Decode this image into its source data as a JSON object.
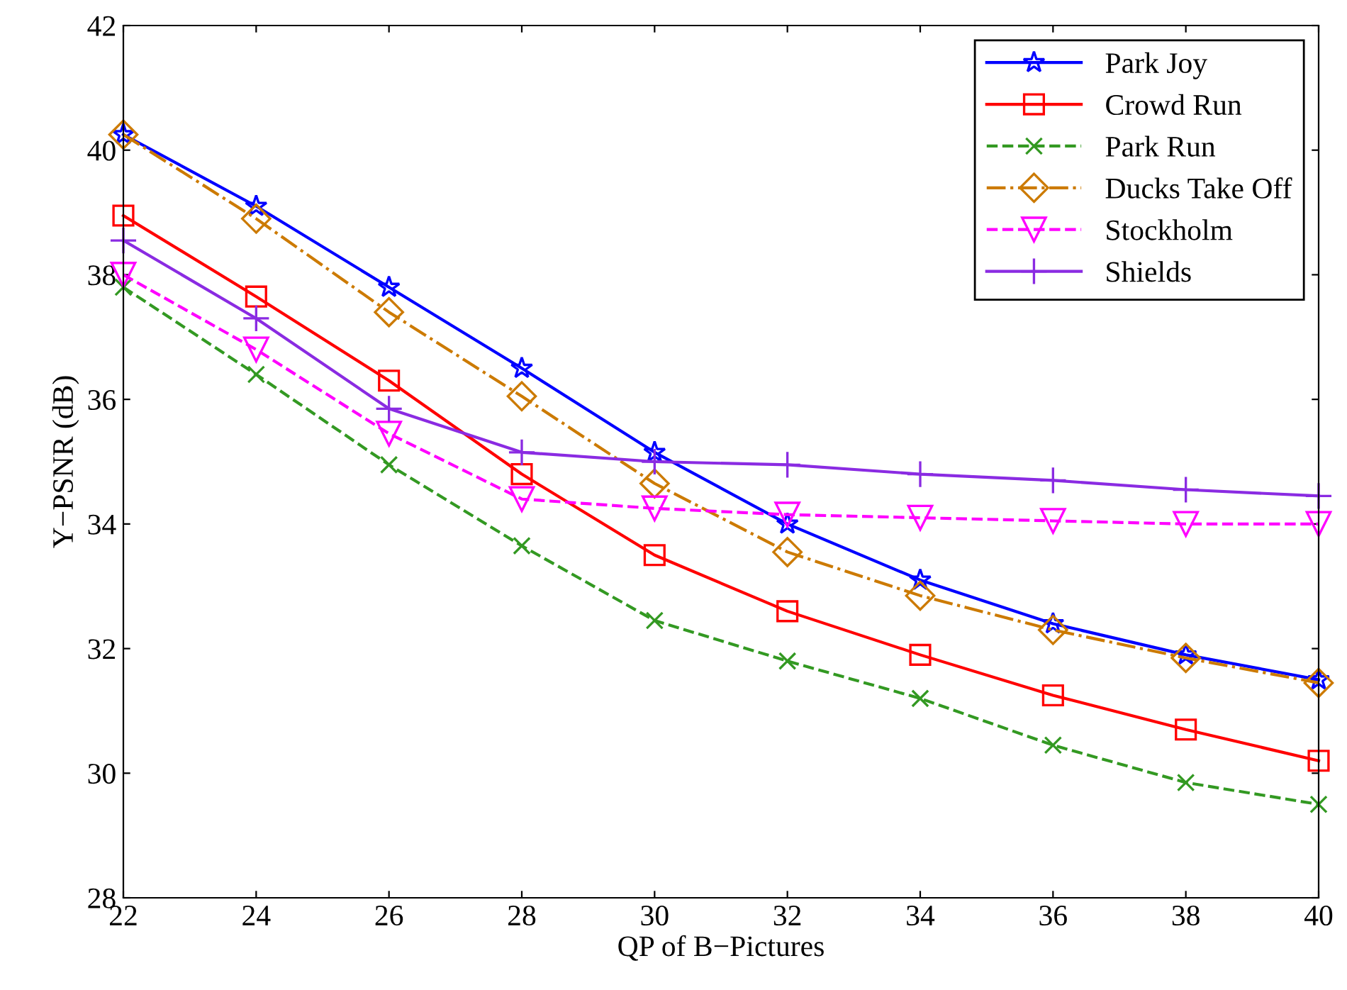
{
  "chart_data": {
    "type": "line",
    "xlabel": "QP of B−Pictures",
    "ylabel": "Y−PSNR (dB)",
    "x": [
      22,
      24,
      26,
      28,
      30,
      32,
      34,
      36,
      38,
      40
    ],
    "xlim": [
      22,
      40
    ],
    "xticks": [
      22,
      24,
      26,
      28,
      30,
      32,
      34,
      36,
      38,
      40
    ],
    "ylim": [
      28,
      42
    ],
    "yticks": [
      28,
      30,
      32,
      34,
      36,
      38,
      40,
      42
    ],
    "grid": false,
    "legend": "top right",
    "series": [
      {
        "name": "Park Joy",
        "color": "#0000ff",
        "marker": "star",
        "line_style": "solid",
        "values": [
          40.25,
          39.1,
          37.8,
          36.5,
          35.15,
          34.0,
          33.1,
          32.4,
          31.9,
          31.5
        ]
      },
      {
        "name": "Crowd Run",
        "color": "#ff0000",
        "marker": "square",
        "line_style": "solid",
        "values": [
          38.95,
          37.65,
          36.3,
          34.8,
          33.5,
          32.6,
          31.9,
          31.25,
          30.7,
          30.2
        ]
      },
      {
        "name": "Park Run",
        "color": "#339922",
        "marker": "cross",
        "line_style": "dashed",
        "values": [
          37.8,
          36.4,
          34.95,
          33.65,
          32.45,
          31.8,
          31.2,
          30.45,
          29.85,
          29.5
        ]
      },
      {
        "name": "Ducks Take Off",
        "color": "#cc7a00",
        "marker": "diamond",
        "line_style": "dashdot",
        "values": [
          40.25,
          38.9,
          37.4,
          36.05,
          34.65,
          33.55,
          32.85,
          32.3,
          31.85,
          31.45
        ]
      },
      {
        "name": "Stockholm",
        "color": "#ff00ff",
        "marker": "triangle",
        "line_style": "dashed",
        "values": [
          38.0,
          36.8,
          35.45,
          34.4,
          34.25,
          34.15,
          34.1,
          34.05,
          34.0,
          34.0
        ]
      },
      {
        "name": "Shields",
        "color": "#8a2be2",
        "marker": "plus",
        "line_style": "solid",
        "values": [
          38.55,
          37.3,
          35.85,
          35.15,
          35.0,
          34.95,
          34.8,
          34.7,
          34.55,
          34.45
        ]
      }
    ]
  }
}
